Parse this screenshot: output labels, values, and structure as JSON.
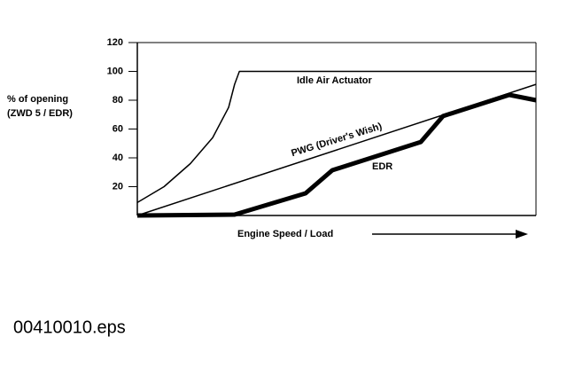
{
  "chart_data": {
    "type": "line",
    "ylabel": [
      "% of opening",
      "(ZWD 5 / EDR)"
    ],
    "xlabel": "Engine Speed / Load",
    "xlim": [
      0,
      100
    ],
    "ylim": [
      0,
      120
    ],
    "yticks": [
      20,
      40,
      60,
      80,
      100,
      120
    ],
    "series": [
      {
        "name": "Idle Air Actuator",
        "color": "#000000",
        "x": [
          0,
          6.7,
          13.3,
          18.9,
          22.9,
          24.4,
          25.6,
          100
        ],
        "values": [
          9,
          20,
          36,
          54,
          75,
          91,
          100,
          100
        ]
      },
      {
        "name": "PWG (Driver's Wish)",
        "color": "#000000",
        "x": [
          0,
          100
        ],
        "values": [
          0,
          91
        ]
      },
      {
        "name": "EDR",
        "color": "#000000",
        "x": [
          0,
          24.4,
          42.2,
          48.9,
          71.1,
          76.7,
          93.3,
          100
        ],
        "values": [
          0,
          0.6,
          15.4,
          31.4,
          51,
          69,
          83.7,
          80
        ]
      }
    ],
    "footer": "00410010.eps"
  }
}
